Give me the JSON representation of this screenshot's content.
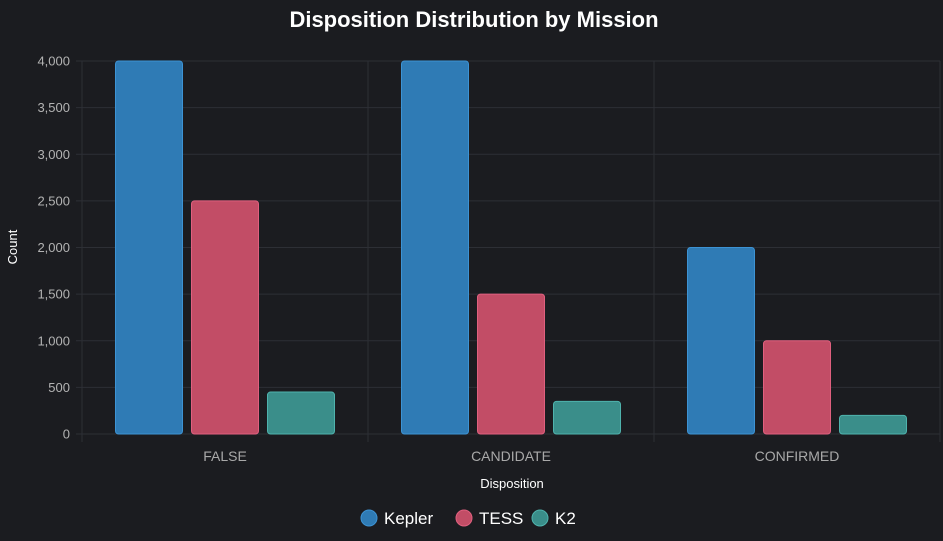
{
  "colors": {
    "background": "#1b1c20",
    "grid": "#2d2f35",
    "series": [
      "#2f7bb5",
      "#c24d66",
      "#3a8e8a"
    ],
    "series_border": [
      "#3d93d4",
      "#e0607f",
      "#4fb3ad"
    ]
  },
  "chart_data": {
    "type": "bar",
    "title": "Disposition Distribution by Mission",
    "xlabel": "Disposition",
    "ylabel": "Count",
    "categories": [
      "FALSE",
      "CANDIDATE",
      "CONFIRMED"
    ],
    "series": [
      {
        "name": "Kepler",
        "values": [
          4000,
          4000,
          2000
        ]
      },
      {
        "name": "TESS",
        "values": [
          2500,
          1500,
          1000
        ]
      },
      {
        "name": "K2",
        "values": [
          450,
          350,
          200
        ]
      }
    ],
    "ylim": [
      0,
      4000
    ],
    "yticks": [
      0,
      500,
      1000,
      1500,
      2000,
      2500,
      3000,
      3500,
      4000
    ],
    "ytick_labels": [
      "0",
      "500",
      "1,000",
      "1,500",
      "2,000",
      "2,500",
      "3,000",
      "3,500",
      "4,000"
    ],
    "grid": true,
    "legend_position": "bottom"
  }
}
